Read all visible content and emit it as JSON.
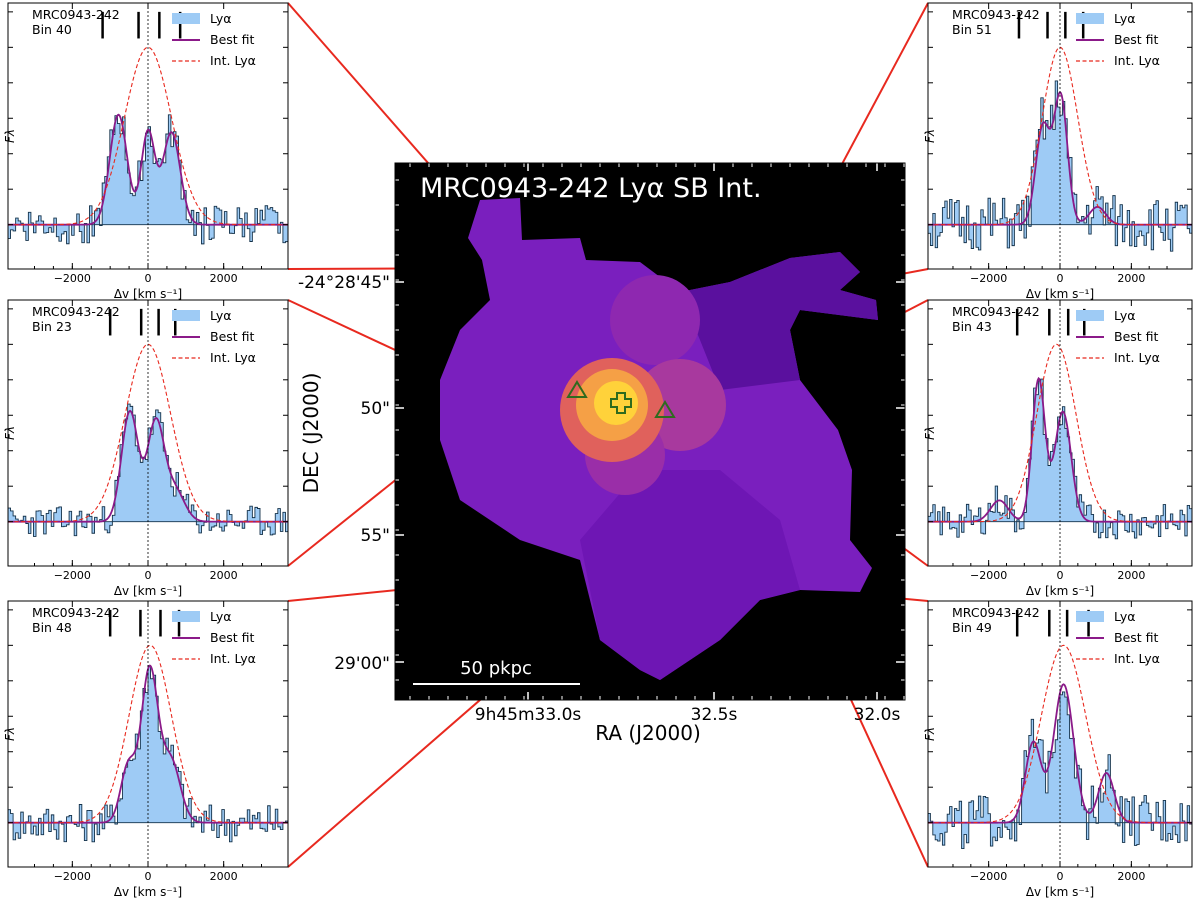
{
  "colors": {
    "fill": "#9ecbf5",
    "best_fit": "#8b1a89",
    "int_lya": "#e8291f",
    "connector": "#e8291f",
    "marker": "#2f6b1e",
    "map_outer": "#7a1fbe",
    "map_dark": "#5a109e",
    "map_core": "#ffd23a",
    "background": "#000000"
  },
  "common": {
    "source": "MRC0943-242",
    "legend": [
      "Lyα",
      "Best fit",
      "Int. Lyα"
    ],
    "xlabel": "Δv [km s⁻¹]",
    "ylabel": "Fλ",
    "xtick_labels": [
      "−2000",
      "0",
      "2000"
    ]
  },
  "map": {
    "title": "MRC0943-242 Lyα SB Int.",
    "ylabel": "DEC (J2000)",
    "xlabel": "RA (J2000)",
    "yticks": [
      "-24°28'45\"",
      "50\"",
      "55\"",
      "29'00\""
    ],
    "xticks": [
      "9h45m33.0s",
      "32.5s",
      "32.0s"
    ],
    "scalebar_label": "50 pkpc",
    "marker_icons": [
      "triangle-icon",
      "triangle-icon",
      "cross-icon"
    ]
  },
  "chart_data": [
    {
      "type": "line",
      "bin": "Bin 40",
      "xlim": [
        -3700,
        3700
      ],
      "marks": [
        -1200,
        -250,
        300,
        850
      ],
      "int_lya": {
        "amp": 1.0,
        "center": 0,
        "sigma": 620
      },
      "best_fit_components": [
        {
          "amp": 0.62,
          "center": -780,
          "sigma": 230
        },
        {
          "amp": 0.52,
          "center": 0,
          "sigma": 180
        },
        {
          "amp": 0.52,
          "center": 620,
          "sigma": 230
        }
      ],
      "noise": 0.1,
      "seed": 40
    },
    {
      "type": "line",
      "bin": "Bin 23",
      "xlim": [
        -3700,
        3700
      ],
      "marks": [
        -1000,
        -180,
        280,
        720
      ],
      "int_lya": {
        "amp": 1.0,
        "center": 0,
        "sigma": 600
      },
      "best_fit_components": [
        {
          "amp": 0.62,
          "center": -480,
          "sigma": 220
        },
        {
          "amp": 0.55,
          "center": 200,
          "sigma": 220
        },
        {
          "amp": 0.18,
          "center": 700,
          "sigma": 260
        }
      ],
      "noise": 0.08,
      "seed": 23
    },
    {
      "type": "line",
      "bin": "Bin 48",
      "xlim": [
        -3700,
        3700
      ],
      "marks": [
        -1000,
        -200,
        330,
        820
      ],
      "int_lya": {
        "amp": 1.0,
        "center": 60,
        "sigma": 560
      },
      "best_fit_components": [
        {
          "amp": 0.32,
          "center": -520,
          "sigma": 200
        },
        {
          "amp": 0.85,
          "center": 40,
          "sigma": 220
        },
        {
          "amp": 0.35,
          "center": 600,
          "sigma": 250
        }
      ],
      "noise": 0.1,
      "seed": 48
    },
    {
      "type": "line",
      "bin": "Bin 51",
      "xlim": [
        -3700,
        3700
      ],
      "marks": [
        -1150,
        -350,
        150,
        650
      ],
      "int_lya": {
        "amp": 1.0,
        "center": 0,
        "sigma": 500
      },
      "best_fit_components": [
        {
          "amp": 0.55,
          "center": -480,
          "sigma": 200
        },
        {
          "amp": 0.72,
          "center": 20,
          "sigma": 190
        },
        {
          "amp": 0.1,
          "center": 1050,
          "sigma": 230
        }
      ],
      "noise": 0.14,
      "seed": 51
    },
    {
      "type": "line",
      "bin": "Bin 43",
      "xlim": [
        -3700,
        3700
      ],
      "marks": [
        -1200,
        -300,
        230,
        680
      ],
      "int_lya": {
        "amp": 1.0,
        "center": -100,
        "sigma": 550
      },
      "best_fit_components": [
        {
          "amp": 0.8,
          "center": -600,
          "sigma": 180
        },
        {
          "amp": 0.62,
          "center": 80,
          "sigma": 230
        },
        {
          "amp": 0.12,
          "center": -1700,
          "sigma": 250
        }
      ],
      "noise": 0.09,
      "seed": 43
    },
    {
      "type": "line",
      "bin": "Bin 49",
      "xlim": [
        -3700,
        3700
      ],
      "marks": [
        -1200,
        -300,
        200,
        800
      ],
      "int_lya": {
        "amp": 1.0,
        "center": 100,
        "sigma": 620
      },
      "best_fit_components": [
        {
          "amp": 0.45,
          "center": -750,
          "sigma": 220
        },
        {
          "amp": 0.78,
          "center": 100,
          "sigma": 280
        },
        {
          "amp": 0.28,
          "center": 1300,
          "sigma": 220
        }
      ],
      "noise": 0.14,
      "seed": 49
    }
  ]
}
